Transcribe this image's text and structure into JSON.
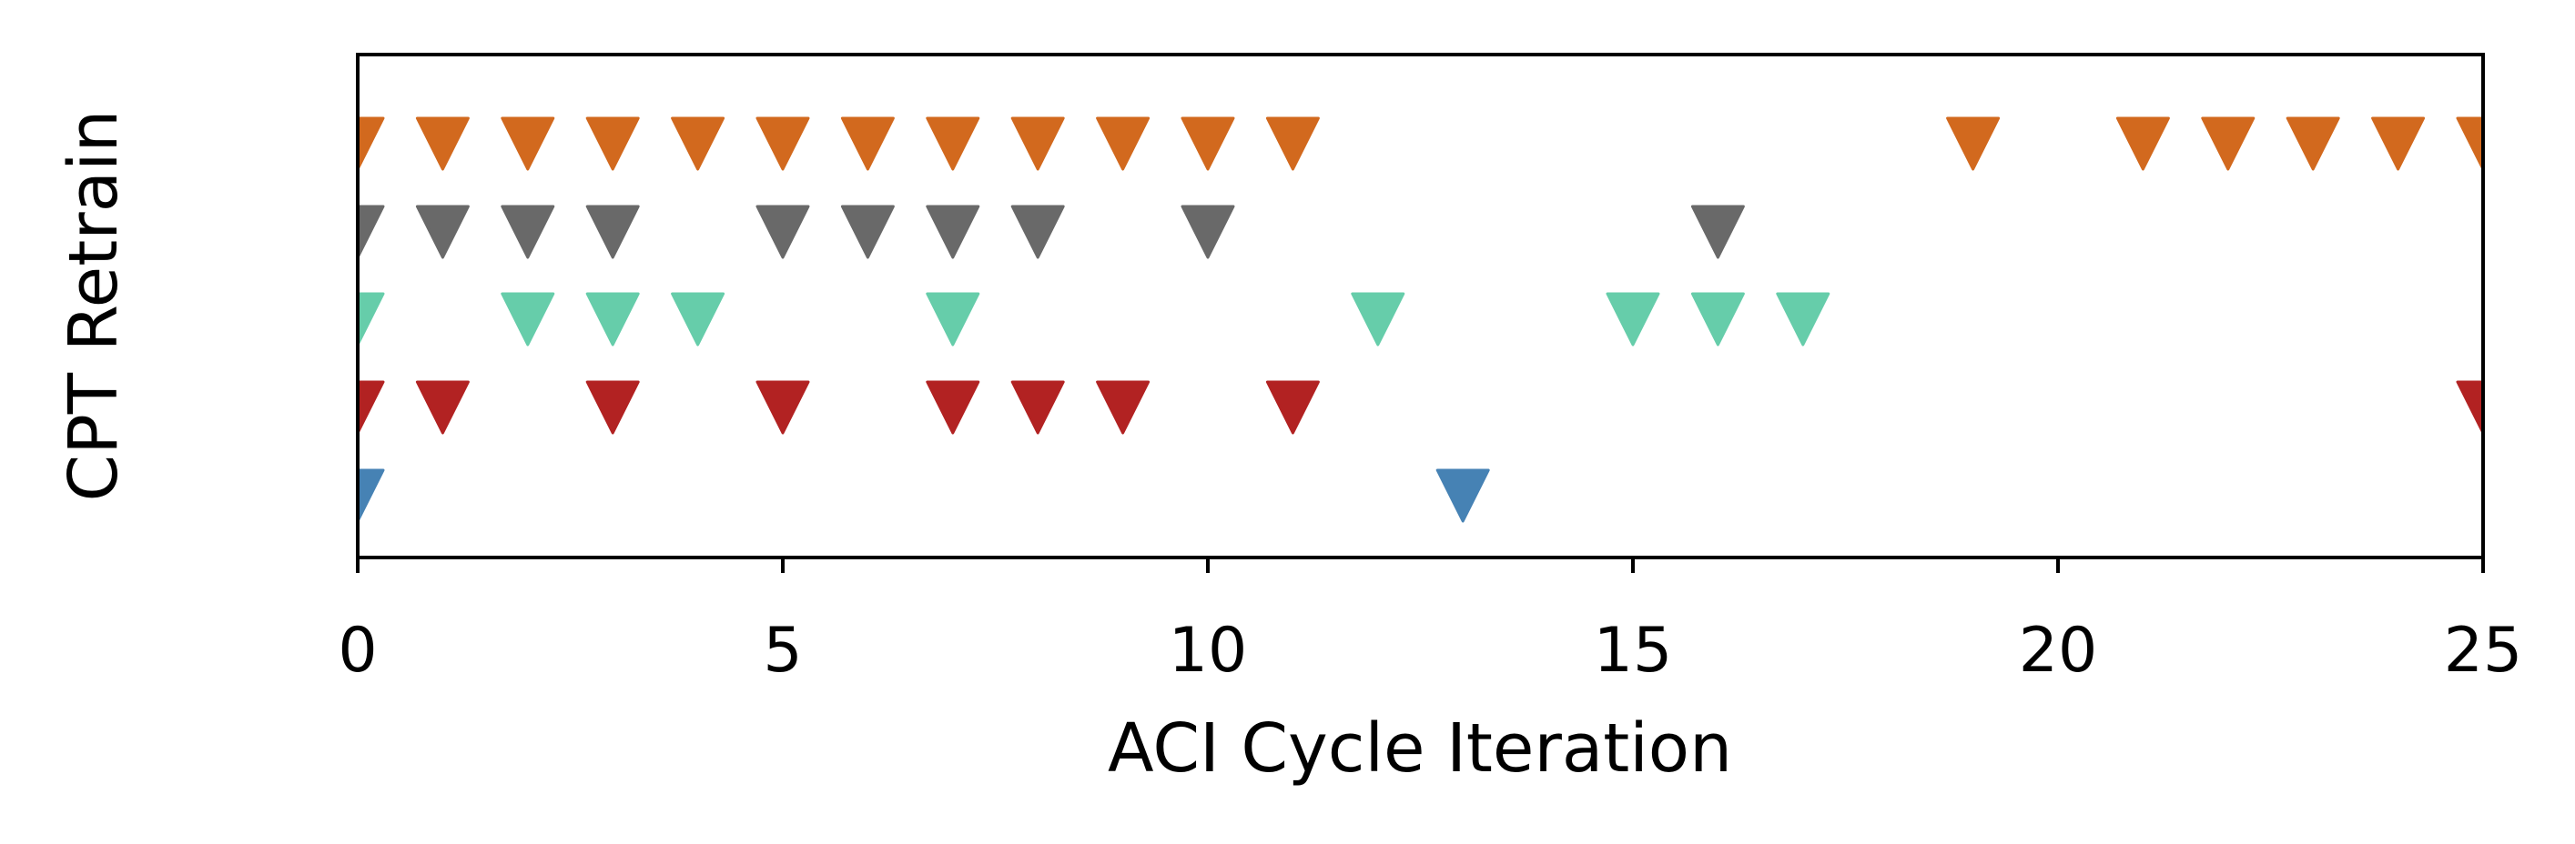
{
  "chart_data": {
    "type": "scatter",
    "title": "",
    "xlabel": "ACI Cycle Iteration",
    "ylabel": "CPT Retrain",
    "xlim": [
      0,
      25
    ],
    "xticks": [
      0,
      5,
      10,
      15,
      20,
      25
    ],
    "tick_labels": [
      "0",
      "5",
      "10",
      "15",
      "20",
      "25"
    ],
    "yticks_shown": false,
    "grid": false,
    "legend": "none",
    "marker": "triangle-down",
    "series": [
      {
        "color": "#D2691E",
        "y": 5,
        "x": [
          0,
          1,
          2,
          3,
          4,
          5,
          6,
          7,
          8,
          9,
          10,
          11,
          19,
          21,
          22,
          23,
          24,
          25
        ]
      },
      {
        "color": "#696969",
        "y": 4,
        "x": [
          0,
          1,
          2,
          3,
          5,
          6,
          7,
          8,
          10,
          16
        ]
      },
      {
        "color": "#66CDAA",
        "y": 3,
        "x": [
          0,
          2,
          3,
          4,
          7,
          12,
          15,
          16,
          17
        ]
      },
      {
        "color": "#B22222",
        "y": 2,
        "x": [
          0,
          1,
          3,
          5,
          7,
          8,
          9,
          11,
          25
        ]
      },
      {
        "color": "#4682B4",
        "y": 1,
        "x": [
          0,
          13
        ]
      }
    ]
  }
}
